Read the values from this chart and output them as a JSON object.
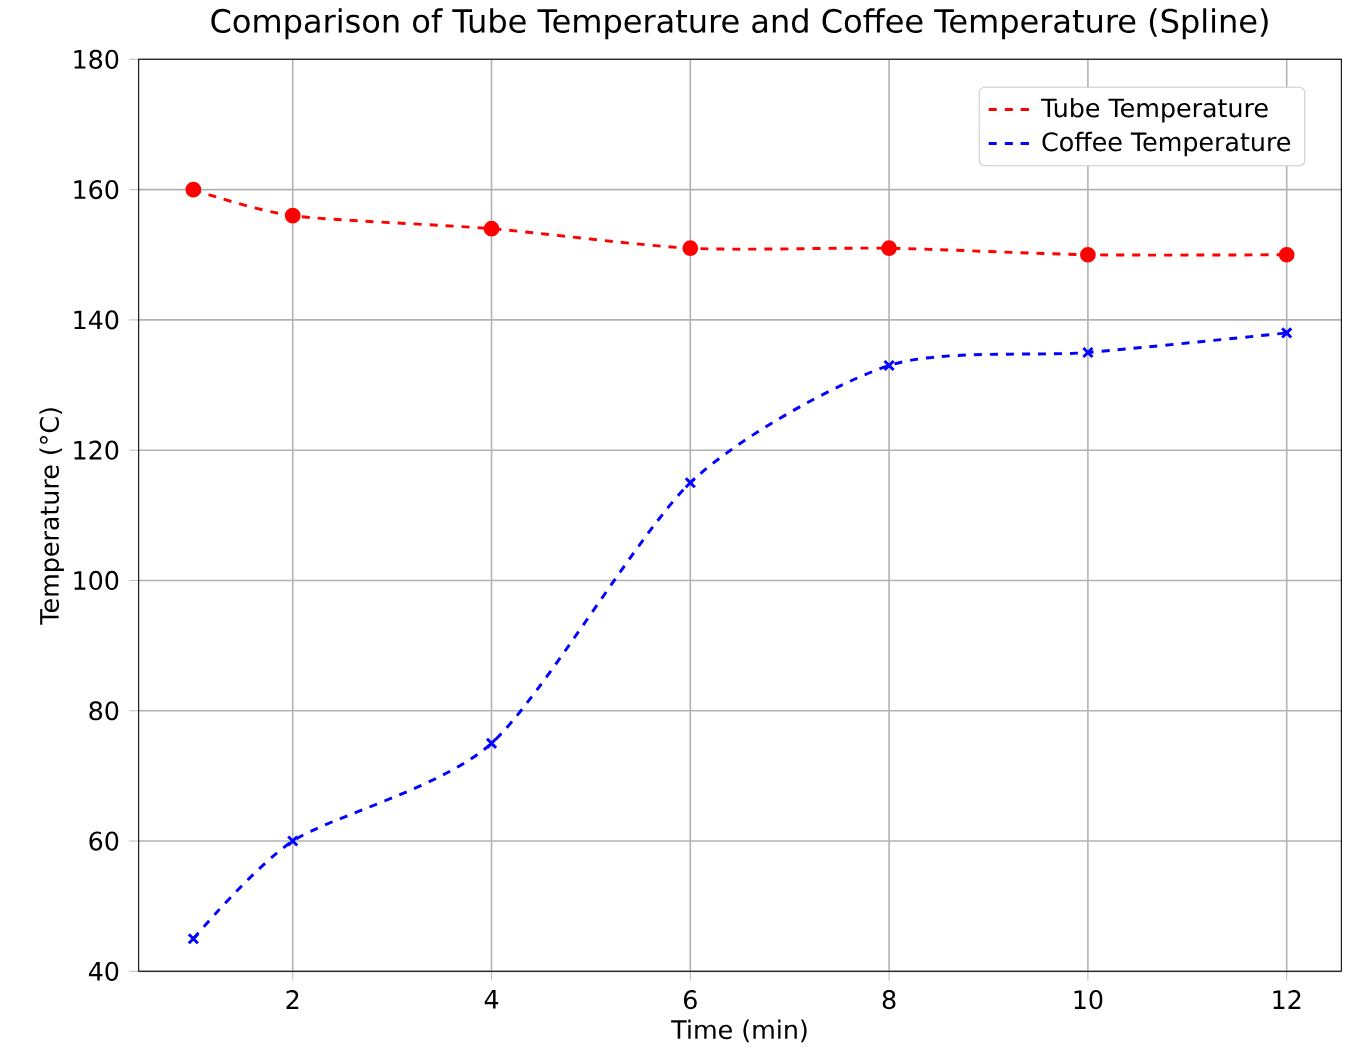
{
  "chart_data": {
    "type": "line",
    "title": "Comparison of Tube Temperature and Coffee Temperature (Spline)",
    "xlabel": "Time (min)",
    "ylabel": "Temperature (°C)",
    "x": [
      1,
      2,
      4,
      6,
      8,
      10,
      12
    ],
    "series": [
      {
        "name": "Tube Temperature",
        "color": "#ff0000",
        "marker": "circle",
        "values": [
          160,
          156,
          154,
          151,
          151,
          150,
          150
        ]
      },
      {
        "name": "Coffee Temperature",
        "color": "#0000ff",
        "marker": "cross",
        "values": [
          45,
          60,
          75,
          115,
          133,
          135,
          138
        ]
      }
    ],
    "line_style": "dashed",
    "grid": true,
    "legend": "top right",
    "xlim": [
      0.45,
      12.55
    ],
    "ylim": [
      40,
      180
    ],
    "xticks": [
      2,
      4,
      6,
      8,
      10,
      12
    ],
    "yticks": [
      40,
      60,
      80,
      100,
      120,
      140,
      160,
      180
    ]
  }
}
